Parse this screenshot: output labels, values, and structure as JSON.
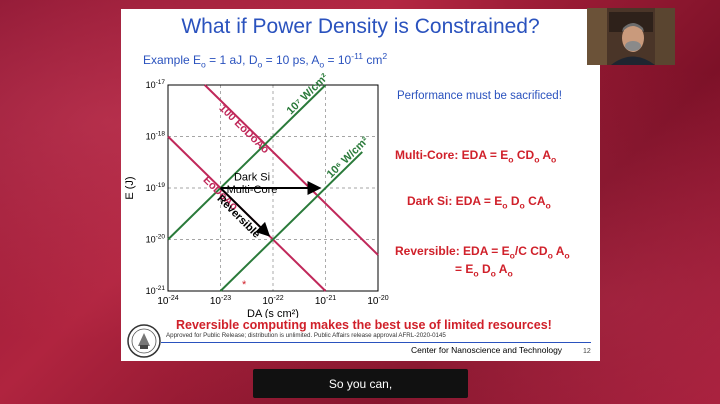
{
  "slide": {
    "title": "What if Power Density is Constrained?",
    "example": {
      "prefix": "Example E",
      "e_val": " = 1 aJ, D",
      "d_val": " = 10 ps,  A",
      "a_val": " = 10",
      "a_exp": "-11",
      "unit": " cm",
      "unit_exp": "2"
    },
    "performance_note": "Performance must be sacrificed!",
    "multicore_label": "Multi-Core: EDA = E",
    "multicore_rest": " CD",
    "multicore_end": " A",
    "darksi_label": "Dark Si: EDA = E",
    "darksi_mid": " D",
    "darksi_end": " CA",
    "reversible_label": "Reversible: EDA = E",
    "reversible_mid": "/C CD",
    "reversible_end": " A",
    "reversible_line2": "= E",
    "reversible_line2_mid": " D",
    "reversible_line2_end": " A",
    "sub_o": "o",
    "conclusion": "Reversible computing makes the best use of limited resources!",
    "approval": "Approved for Public Release; distribution is unlimited. Public Affairs release approval AFRL-2020-0145",
    "center": "Center for Nanoscience and Technology",
    "page_number": "12"
  },
  "chart_data": {
    "type": "line",
    "xlabel": "DA (s cm²)",
    "ylabel": "E (J)",
    "x_scale": "log",
    "y_scale": "log",
    "xlim": [
      -24,
      -20
    ],
    "ylim": [
      -21,
      -17
    ],
    "x_ticks": [
      -24,
      -23,
      -22,
      -21,
      -20
    ],
    "y_ticks": [
      -21,
      -20,
      -19,
      -18,
      -17
    ],
    "x_tick_labels": [
      "10-24",
      "10-23",
      "10-22",
      "10-21",
      "10-20"
    ],
    "y_tick_labels": [
      "10-21",
      "10-20",
      "10-19",
      "10-18",
      "10-17"
    ],
    "grid": true,
    "series": [
      {
        "name": "100 EoDoAo",
        "color": "#c0285a",
        "points": [
          [
            -23.3,
            -17
          ],
          [
            -20,
            -20.3
          ]
        ]
      },
      {
        "name": "EoDoAo",
        "color": "#c0285a",
        "points": [
          [
            -24,
            -18
          ],
          [
            -21,
            -21
          ]
        ]
      },
      {
        "name": "10⁶ W/cm²",
        "color": "#2a7a3a",
        "points": [
          [
            -23,
            -21
          ],
          [
            -20.3,
            -18.3
          ]
        ]
      },
      {
        "name": "10⁷ W/cm²",
        "color": "#2a7a3a",
        "points": [
          [
            -24,
            -20
          ],
          [
            -21,
            -17
          ]
        ]
      }
    ],
    "annotations": [
      {
        "text": "Dark Si",
        "x": -22.4,
        "y": -18.85
      },
      {
        "text": "Multi-Core",
        "x": -22.4,
        "y": -19.1
      },
      {
        "text": "Reversible",
        "x": -22.7,
        "y": -19.6,
        "color": "#000"
      }
    ],
    "arrows": [
      {
        "from": [
          -23,
          -19
        ],
        "to": [
          -21,
          -19
        ],
        "color": "#000"
      },
      {
        "from": [
          -23,
          -19
        ],
        "to": [
          -22,
          -20
        ],
        "color": "#000"
      }
    ],
    "marker": {
      "x": -22.55,
      "y": -21,
      "color": "#d0202a"
    }
  },
  "caption": {
    "text": "So you can,"
  }
}
